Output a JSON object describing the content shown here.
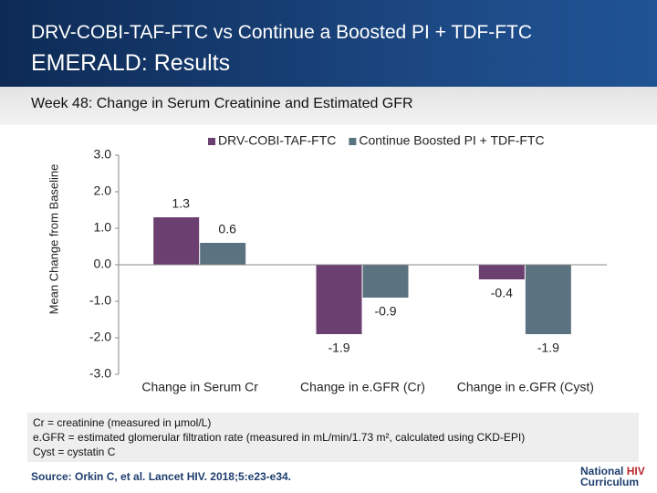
{
  "header": {
    "title": "DRV-COBI-TAF-FTC vs Continue a Boosted PI + TDF-FTC",
    "subtitle": "EMERALD: Results",
    "section": "Week 48: Change in Serum Creatinine and Estimated GFR"
  },
  "chart_data": {
    "type": "bar",
    "y_label": "Mean Change from Baseline",
    "categories": [
      "Change in Serum Cr",
      "Change in e.GFR (Cr)",
      "Change in e.GFR (Cyst)"
    ],
    "series": [
      {
        "name": "DRV-COBI-TAF-FTC",
        "color": "#6b3f70",
        "values": [
          1.3,
          -1.9,
          -0.4
        ]
      },
      {
        "name": "Continue Boosted PI + TDF-FTC",
        "color": "#5b7380",
        "values": [
          0.6,
          -0.9,
          -1.9
        ]
      }
    ],
    "ylim": [
      -3,
      3
    ],
    "yticks": [
      {
        "value": 3,
        "label": "3.0"
      },
      {
        "value": 2,
        "label": "2.0"
      },
      {
        "value": 1,
        "label": "1.0"
      },
      {
        "value": 0,
        "label": "0.0"
      },
      {
        "value": -1,
        "label": "-1.0"
      },
      {
        "value": -2,
        "label": "-2.0"
      },
      {
        "value": -3,
        "label": "-3.0"
      }
    ],
    "grid": false,
    "legend": "top"
  },
  "footnotes": [
    "Cr = creatinine (measured in µmol/L)",
    "e.GFR = estimated glomerular filtration rate (measured in mL/min/1.73 m², calculated using CKD-EPI)",
    "Cyst = cystatin C"
  ],
  "source": "Source: Orkin C, et al. Lancet HIV. 2018;5:e23-e34.",
  "logo": [
    "National",
    "HIV",
    "Curriculum"
  ]
}
